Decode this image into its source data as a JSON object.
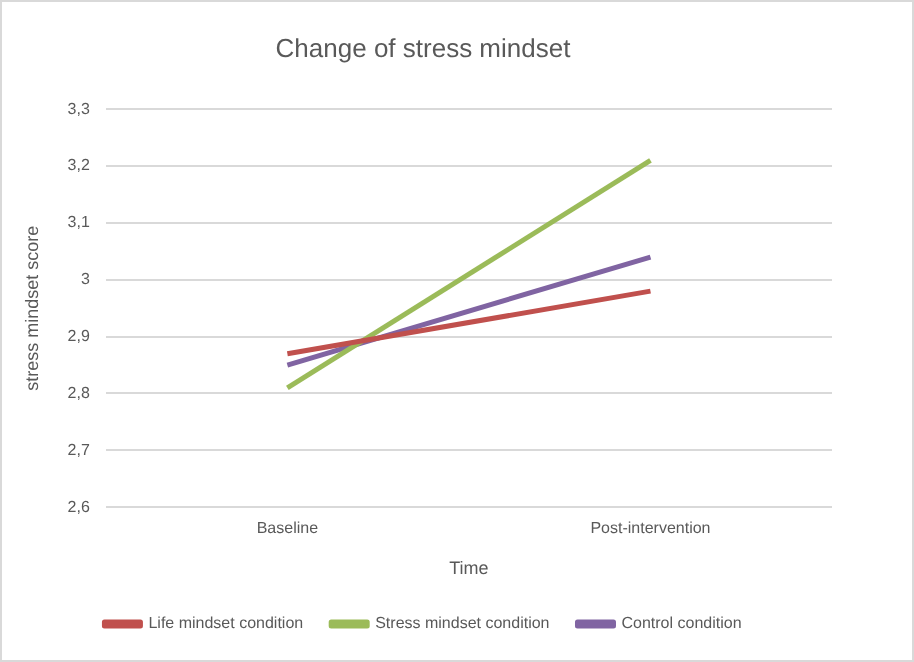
{
  "chart_data": {
    "type": "line",
    "title": "Change of stress mindset",
    "xlabel": "Time",
    "ylabel": "stress mindset score",
    "categories": [
      "Baseline",
      "Post-intervention"
    ],
    "series": [
      {
        "name": "Life mindset condition",
        "color": "#c0504d",
        "values": [
          2.87,
          2.98
        ]
      },
      {
        "name": "Stress mindset condition",
        "color": "#9bbb59",
        "values": [
          2.81,
          3.21
        ]
      },
      {
        "name": "Control condition",
        "color": "#8064a2",
        "values": [
          2.85,
          3.04
        ]
      }
    ],
    "ylim": [
      2.6,
      3.3
    ],
    "yticks": [
      {
        "value": 2.6,
        "label": "2,6"
      },
      {
        "value": 2.7,
        "label": "2,7"
      },
      {
        "value": 2.8,
        "label": "2,8"
      },
      {
        "value": 2.9,
        "label": "2,9"
      },
      {
        "value": 3,
        "label": "3"
      },
      {
        "value": 3.1,
        "label": "3,1"
      },
      {
        "value": 3.2,
        "label": "3,2"
      },
      {
        "value": 3.3,
        "label": "3,3"
      }
    ],
    "grid": "y",
    "legend": "bottom",
    "marker": "none",
    "line_style": "solid"
  }
}
